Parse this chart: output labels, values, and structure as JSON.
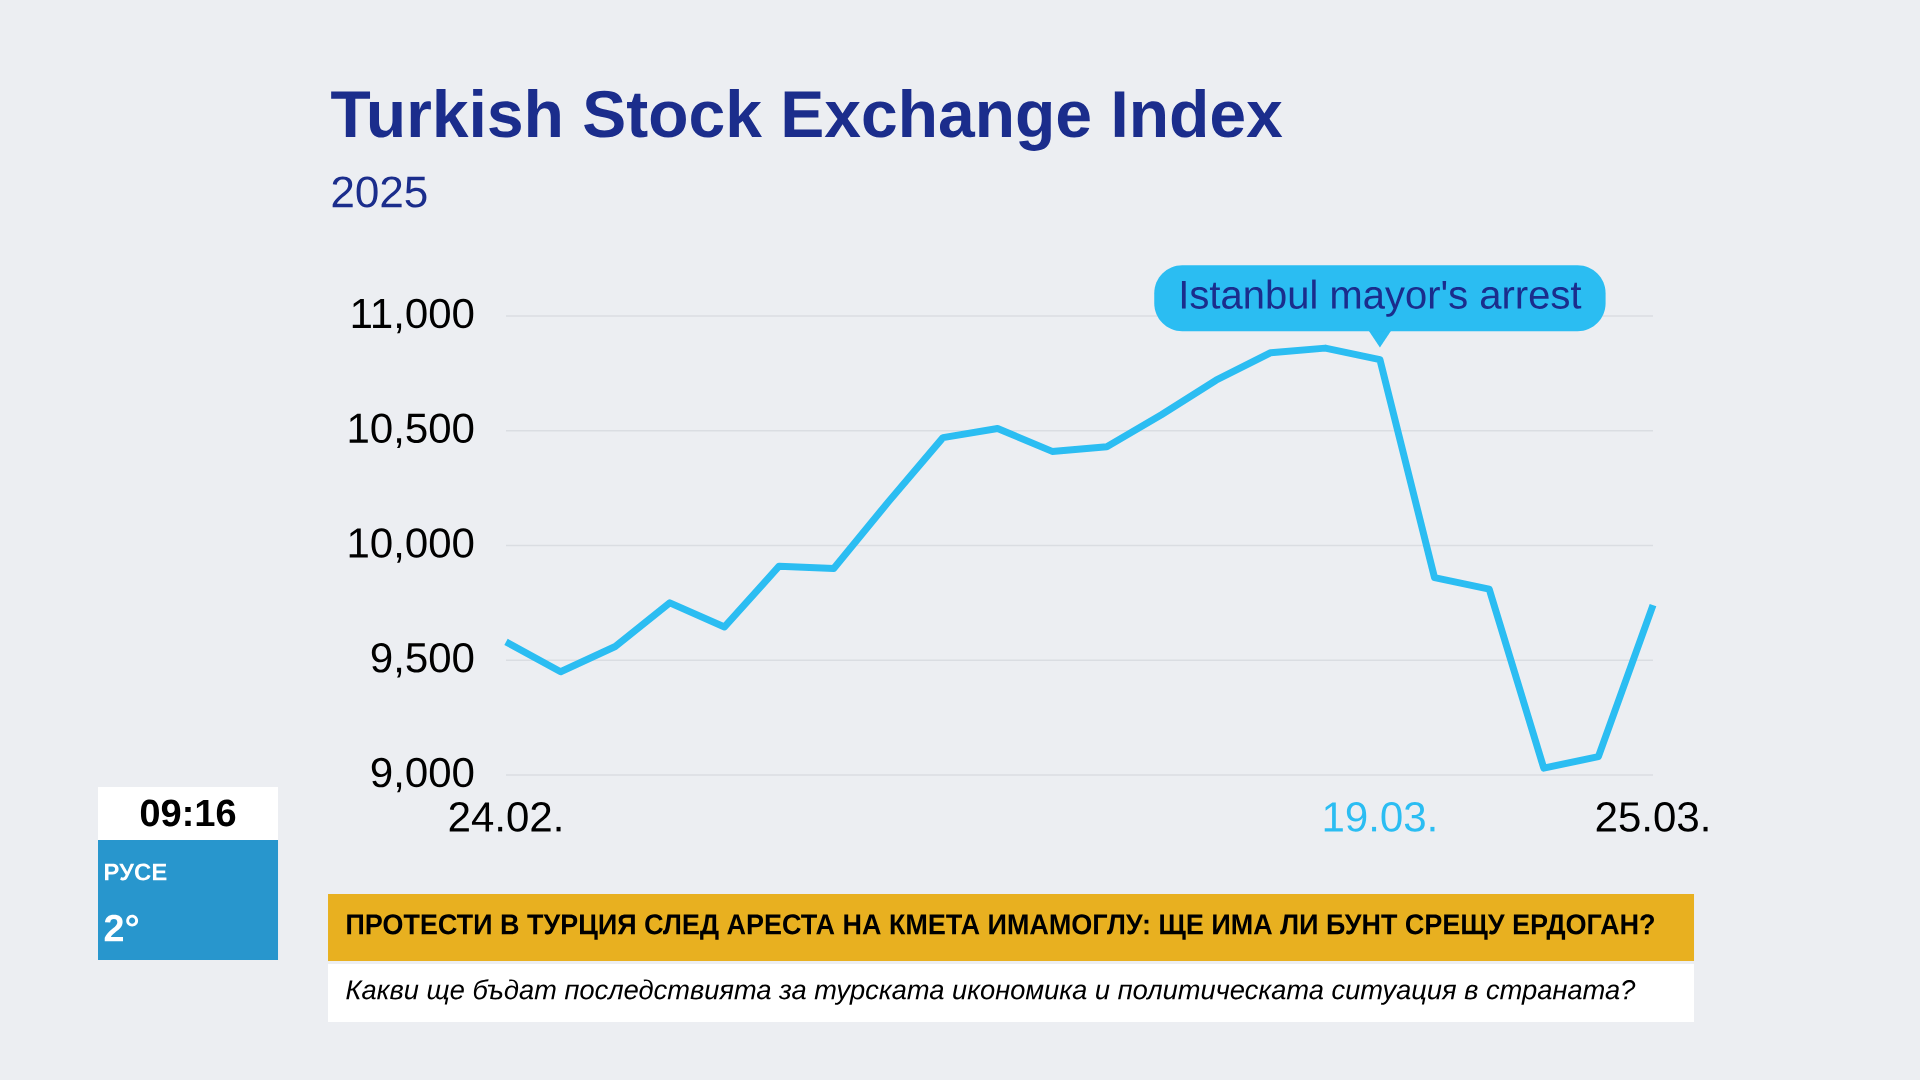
{
  "chart_data": {
    "type": "line",
    "title": "Turkish Stock Exchange Index",
    "subtitle": "2025",
    "categories": [
      "24.02.",
      null,
      null,
      null,
      null,
      null,
      null,
      null,
      null,
      null,
      null,
      null,
      null,
      null,
      null,
      null,
      "19.03.",
      null,
      null,
      null,
      null,
      "25.03."
    ],
    "series": [
      {
        "color": "#2bbdf2",
        "values": [
          9580,
          9450,
          9560,
          9750,
          9645,
          9910,
          9900,
          10190,
          10470,
          10510,
          10410,
          10430,
          10570,
          10720,
          10840,
          10860,
          10810,
          9860,
          9810,
          9030,
          9080,
          9740
        ]
      }
    ],
    "ylim": [
      9000,
      11000
    ],
    "yticks": [
      {
        "value": 9000,
        "label": "9,000"
      },
      {
        "value": 9500,
        "label": "9,500"
      },
      {
        "value": 10000,
        "label": "10,000"
      },
      {
        "value": 10500,
        "label": "10,500"
      },
      {
        "value": 11000,
        "label": "11,000"
      }
    ],
    "grid": "y",
    "annotations": [
      {
        "text": "Istanbul mayor's arrest",
        "x": "19.03.",
        "y": 10810
      },
      "ПРОТЕСТИ В ТУРЦИЯ СЛЕД АРЕСТА НА КМЕТА ИМАМОГЛУ: ЩЕ ИМА ЛИ БУНТ СРЕЩУ ЕРДОГАН?",
      "Какви ще бъдат последствията за турската икономика и политическата ситуация в страната?",
      "09:16",
      "РУСЕ",
      "2°"
    ]
  }
}
